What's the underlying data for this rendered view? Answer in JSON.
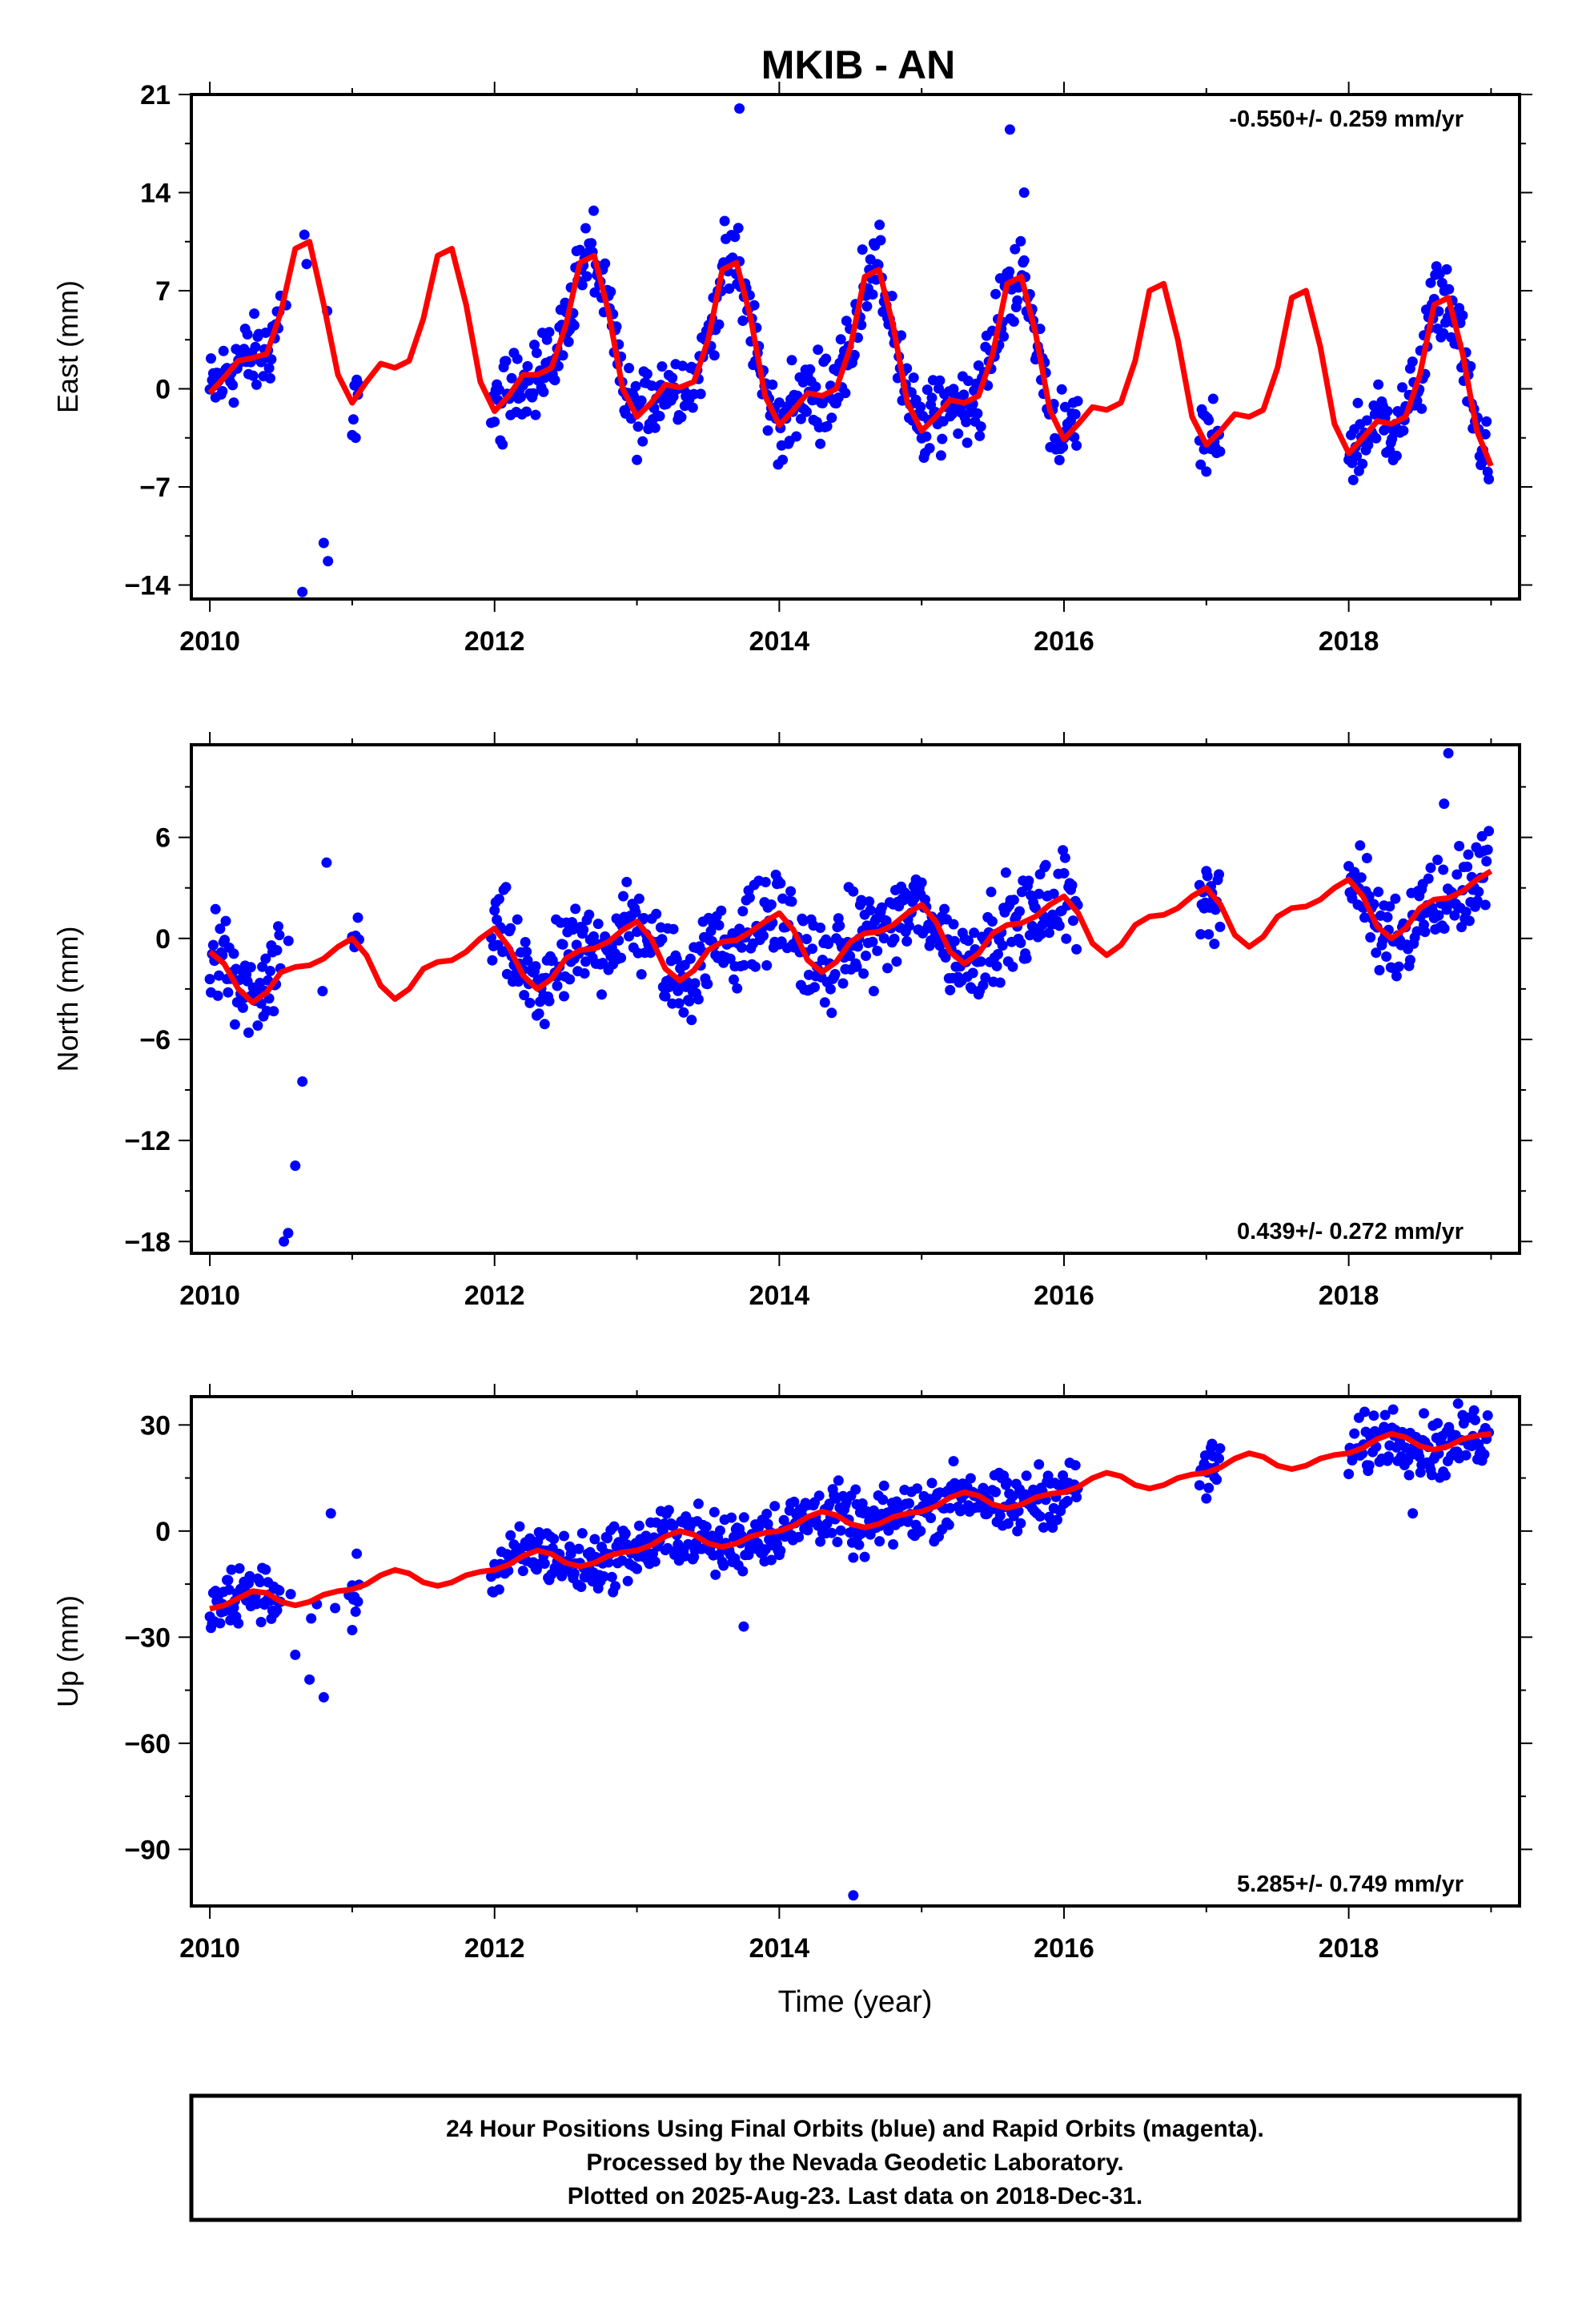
{
  "figure": {
    "title": "MKIB - AN",
    "xlabel": "Time (year)",
    "footer": [
      "24 Hour Positions Using Final Orbits (blue) and Rapid Orbits (magenta).",
      "Processed by the Nevada Geodetic Laboratory.",
      "Plotted on 2025-Aug-23. Last data on 2018-Dec-31."
    ]
  },
  "chart_data": [
    {
      "type": "scatter",
      "ylabel": "East (mm)",
      "rate_label": "-0.550+/- 0.259 mm/yr",
      "rate_position": "top-right",
      "xlim": [
        2009.87,
        2019.2
      ],
      "ylim": [
        -15,
        21
      ],
      "xticks": [
        2010,
        2012,
        2014,
        2016,
        2018
      ],
      "yticks": [
        -14,
        -7,
        0,
        7,
        14,
        21
      ],
      "colors": {
        "data": "#0000ff",
        "model": "#ff0000"
      },
      "model": {
        "x": [
          2010.0,
          2010.1,
          2010.2,
          2010.3,
          2010.4,
          2010.5,
          2010.6,
          2010.7,
          2010.8,
          2010.9,
          2011.0,
          2011.1,
          2011.2,
          2011.3,
          2011.4,
          2011.5,
          2011.6,
          2011.7,
          2011.8,
          2011.9,
          2012.0,
          2012.1,
          2012.2,
          2012.3,
          2012.4,
          2012.5,
          2012.6,
          2012.7,
          2012.8,
          2012.9,
          2013.0,
          2013.1,
          2013.2,
          2013.3,
          2013.4,
          2013.5,
          2013.6,
          2013.7,
          2013.8,
          2013.9,
          2014.0,
          2014.1,
          2014.2,
          2014.3,
          2014.4,
          2014.5,
          2014.6,
          2014.7,
          2014.8,
          2014.9,
          2015.0,
          2015.1,
          2015.2,
          2015.3,
          2015.4,
          2015.5,
          2015.6,
          2015.7,
          2015.8,
          2015.9,
          2016.0,
          2016.1,
          2016.2,
          2016.3,
          2016.4,
          2016.5,
          2016.6,
          2016.7,
          2016.8,
          2016.9,
          2017.0,
          2017.1,
          2017.2,
          2017.3,
          2017.4,
          2017.5,
          2017.6,
          2017.7,
          2017.8,
          2017.9,
          2018.0,
          2018.1,
          2018.2,
          2018.3,
          2018.4,
          2018.5,
          2018.6,
          2018.7,
          2018.8,
          2018.9,
          2019.0
        ],
        "y": [
          -0.3,
          0.8,
          2.0,
          2.2,
          2.5,
          5.5,
          10.0,
          10.5,
          6.0,
          1.0,
          -1.0,
          0.5,
          1.8,
          1.5,
          2.0,
          5.0,
          9.5,
          10.0,
          6.0,
          0.5,
          -1.6,
          -0.5,
          1.0,
          1.0,
          1.5,
          4.5,
          9.0,
          9.5,
          5.5,
          0.0,
          -2.0,
          -1.0,
          0.3,
          0.1,
          0.5,
          3.5,
          8.5,
          9.0,
          5.0,
          -0.5,
          -2.6,
          -1.5,
          -0.3,
          -0.5,
          0.0,
          3.0,
          8.0,
          8.5,
          4.5,
          -1.0,
          -3.0,
          -2.0,
          -0.8,
          -1.0,
          -0.5,
          2.5,
          7.5,
          8.0,
          4.0,
          -1.5,
          -3.6,
          -2.5,
          -1.3,
          -1.5,
          -1.0,
          2.0,
          7.0,
          7.5,
          3.5,
          -2.0,
          -4.0,
          -3.0,
          -1.8,
          -2.0,
          -1.5,
          1.5,
          6.5,
          7.0,
          3.0,
          -2.5,
          -4.6,
          -3.5,
          -2.3,
          -2.5,
          -2.0,
          1.0,
          6.0,
          6.5,
          2.5,
          -3.0,
          -5.5
        ]
      },
      "outliers": {
        "x": [
          2010.65,
          2010.8,
          2010.83,
          2013.72,
          2015.62,
          2015.72
        ],
        "y": [
          -14.5,
          -11.0,
          -12.3,
          20.0,
          18.5,
          14.0
        ]
      }
    },
    {
      "type": "scatter",
      "ylabel": "North (mm)",
      "rate_label": "0.439+/- 0.272 mm/yr",
      "rate_position": "bottom-right",
      "xlim": [
        2009.87,
        2019.2
      ],
      "ylim": [
        -18.7,
        11.5
      ],
      "xticks": [
        2010,
        2012,
        2014,
        2016,
        2018
      ],
      "yticks": [
        -18,
        -12,
        -6,
        0,
        6
      ],
      "colors": {
        "data": "#0000ff",
        "model": "#ff0000"
      },
      "model": {
        "x": [
          2010.0,
          2010.1,
          2010.2,
          2010.3,
          2010.4,
          2010.5,
          2010.6,
          2010.7,
          2010.8,
          2010.9,
          2011.0,
          2011.1,
          2011.2,
          2011.3,
          2011.4,
          2011.5,
          2011.6,
          2011.7,
          2011.8,
          2011.9,
          2012.0,
          2012.1,
          2012.2,
          2012.3,
          2012.4,
          2012.5,
          2012.6,
          2012.7,
          2012.8,
          2012.9,
          2013.0,
          2013.1,
          2013.2,
          2013.3,
          2013.4,
          2013.5,
          2013.6,
          2013.7,
          2013.8,
          2013.9,
          2014.0,
          2014.1,
          2014.2,
          2014.3,
          2014.4,
          2014.5,
          2014.6,
          2014.7,
          2014.8,
          2014.9,
          2015.0,
          2015.1,
          2015.2,
          2015.3,
          2015.4,
          2015.5,
          2015.6,
          2015.7,
          2015.8,
          2015.9,
          2016.0,
          2016.1,
          2016.2,
          2016.3,
          2016.4,
          2016.5,
          2016.6,
          2016.7,
          2016.8,
          2016.9,
          2017.0,
          2017.1,
          2017.2,
          2017.3,
          2017.4,
          2017.5,
          2017.6,
          2017.7,
          2017.8,
          2017.9,
          2018.0,
          2018.1,
          2018.2,
          2018.3,
          2018.4,
          2018.5,
          2018.6,
          2018.7,
          2018.8,
          2018.9,
          2019.0
        ],
        "y": [
          -0.8,
          -1.5,
          -3.0,
          -3.8,
          -3.2,
          -2.0,
          -1.7,
          -1.6,
          -1.2,
          -0.5,
          0.0,
          -1.0,
          -2.8,
          -3.6,
          -3.0,
          -1.8,
          -1.4,
          -1.3,
          -0.8,
          0.0,
          0.6,
          -0.5,
          -2.2,
          -3.0,
          -2.4,
          -1.2,
          -0.7,
          -0.6,
          -0.2,
          0.5,
          1.0,
          0.0,
          -1.8,
          -2.5,
          -1.9,
          -0.7,
          -0.2,
          -0.1,
          0.4,
          1.0,
          1.5,
          0.5,
          -1.3,
          -2.0,
          -1.4,
          -0.2,
          0.3,
          0.4,
          0.8,
          1.5,
          2.0,
          1.0,
          -0.8,
          -1.5,
          -0.9,
          0.3,
          0.8,
          0.9,
          1.3,
          2.0,
          2.5,
          1.5,
          -0.3,
          -1.0,
          -0.4,
          0.8,
          1.3,
          1.4,
          1.8,
          2.5,
          3.0,
          2.0,
          0.2,
          -0.5,
          0.1,
          1.3,
          1.8,
          1.9,
          2.3,
          3.0,
          3.5,
          2.5,
          0.7,
          0.0,
          0.6,
          1.8,
          2.3,
          2.4,
          2.8,
          3.5,
          4.0
        ]
      },
      "outliers": {
        "x": [
          2010.6,
          2010.65,
          2010.82,
          2010.52,
          2010.55,
          2018.67,
          2018.7
        ],
        "y": [
          -13.5,
          -8.5,
          4.5,
          -18.0,
          -17.5,
          8.0,
          11.0
        ]
      }
    },
    {
      "type": "scatter",
      "ylabel": "Up (mm)",
      "rate_label": "5.285+/- 0.749 mm/yr",
      "rate_position": "bottom-right",
      "xlim": [
        2009.87,
        2019.2
      ],
      "ylim": [
        -106,
        38
      ],
      "xticks": [
        2010,
        2012,
        2014,
        2016,
        2018
      ],
      "yticks": [
        -90,
        -60,
        -30,
        0,
        30
      ],
      "colors": {
        "data": "#0000ff",
        "model": "#ff0000"
      },
      "model": {
        "x": [
          2010.0,
          2010.1,
          2010.2,
          2010.3,
          2010.4,
          2010.5,
          2010.6,
          2010.7,
          2010.8,
          2010.9,
          2011.0,
          2011.1,
          2011.2,
          2011.3,
          2011.4,
          2011.5,
          2011.6,
          2011.7,
          2011.8,
          2011.9,
          2012.0,
          2012.1,
          2012.2,
          2012.3,
          2012.4,
          2012.5,
          2012.6,
          2012.7,
          2012.8,
          2012.9,
          2013.0,
          2013.1,
          2013.2,
          2013.3,
          2013.4,
          2013.5,
          2013.6,
          2013.7,
          2013.8,
          2013.9,
          2014.0,
          2014.1,
          2014.2,
          2014.3,
          2014.4,
          2014.5,
          2014.6,
          2014.7,
          2014.8,
          2014.9,
          2015.0,
          2015.1,
          2015.2,
          2015.3,
          2015.4,
          2015.5,
          2015.6,
          2015.7,
          2015.8,
          2015.9,
          2016.0,
          2016.1,
          2016.2,
          2016.3,
          2016.4,
          2016.5,
          2016.6,
          2016.7,
          2016.8,
          2016.9,
          2017.0,
          2017.1,
          2017.2,
          2017.3,
          2017.4,
          2017.5,
          2017.6,
          2017.7,
          2017.8,
          2017.9,
          2018.0,
          2018.1,
          2018.2,
          2018.3,
          2018.4,
          2018.5,
          2018.6,
          2018.7,
          2018.8,
          2018.9,
          2019.0
        ],
        "y": [
          -22.0,
          -21.0,
          -19.0,
          -17.0,
          -17.5,
          -20.0,
          -21.0,
          -20.0,
          -18.0,
          -17.0,
          -16.5,
          -15.0,
          -12.5,
          -11.0,
          -12.0,
          -14.5,
          -15.5,
          -14.5,
          -12.5,
          -11.5,
          -11.0,
          -9.5,
          -7.0,
          -5.5,
          -6.5,
          -9.0,
          -10.0,
          -9.0,
          -7.0,
          -6.0,
          -5.5,
          -4.0,
          -1.5,
          0.0,
          -1.0,
          -3.5,
          -4.5,
          -3.5,
          -1.5,
          -0.5,
          0.0,
          1.5,
          4.0,
          5.5,
          4.5,
          2.0,
          1.0,
          2.0,
          4.0,
          5.0,
          5.5,
          7.0,
          9.5,
          11.0,
          10.0,
          7.5,
          6.5,
          7.5,
          9.5,
          10.5,
          11.0,
          12.5,
          15.0,
          16.5,
          15.5,
          13.0,
          12.0,
          13.0,
          15.0,
          16.0,
          16.5,
          18.0,
          20.5,
          22.0,
          21.0,
          18.5,
          17.5,
          18.5,
          20.5,
          21.5,
          22.0,
          23.5,
          26.0,
          27.5,
          26.5,
          24.0,
          23.0,
          24.0,
          26.0,
          27.0,
          27.5
        ]
      },
      "outliers": {
        "x": [
          2010.6,
          2010.7,
          2010.8,
          2010.85,
          2011.0,
          2014.52,
          2013.75,
          2018.45
        ],
        "y": [
          -35.0,
          -42.0,
          -47.0,
          5.0,
          -28.0,
          -103.0,
          -27.0,
          5.0
        ]
      }
    }
  ]
}
